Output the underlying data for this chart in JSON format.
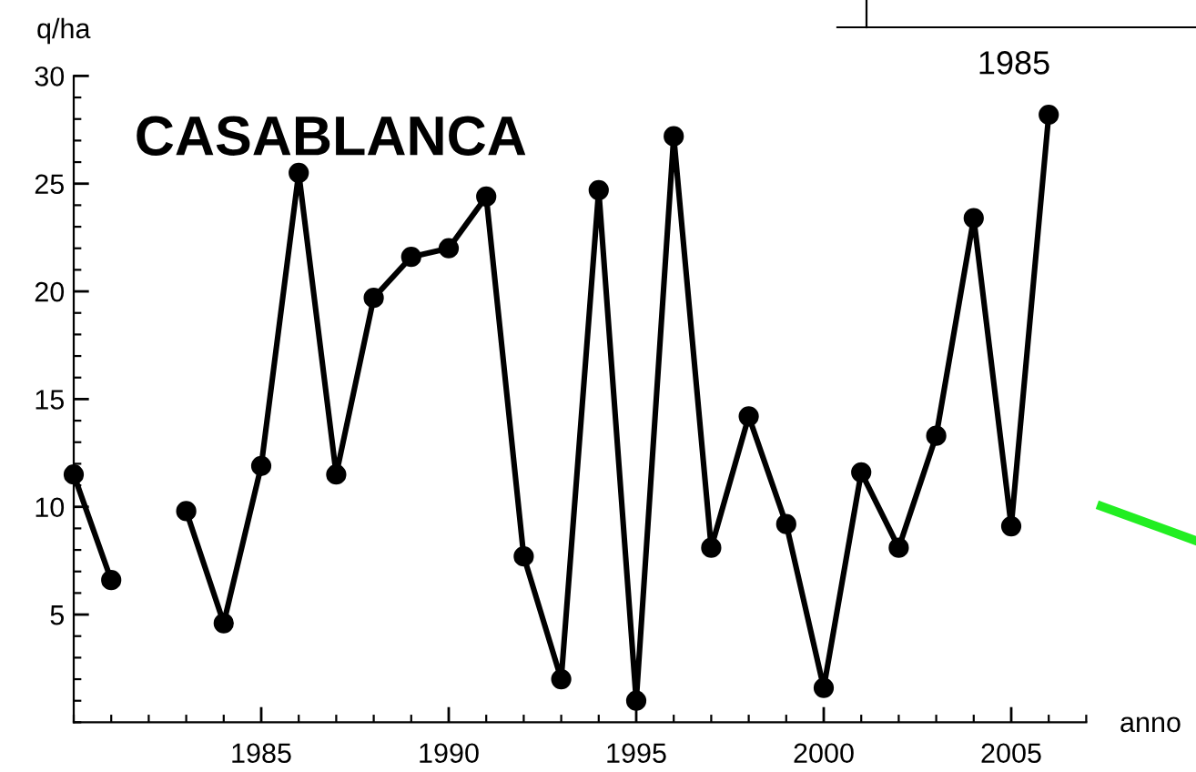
{
  "chart_data": {
    "type": "line",
    "title": "CASABLANCA",
    "xlabel": "anno",
    "ylabel": "q/ha",
    "x": [
      1980,
      1981,
      1982,
      1983,
      1984,
      1985,
      1986,
      1987,
      1988,
      1989,
      1990,
      1991,
      1992,
      1993,
      1994,
      1995,
      1996,
      1997,
      1998,
      1999,
      2000,
      2001,
      2002,
      2003,
      2004,
      2005,
      2006
    ],
    "series": [
      {
        "color": "#000000",
        "values": [
          11.5,
          6.6,
          null,
          9.8,
          4.6,
          11.9,
          25.5,
          11.5,
          19.7,
          21.6,
          22.0,
          24.4,
          7.7,
          2.0,
          24.7,
          1.0,
          27.2,
          8.1,
          14.2,
          9.2,
          1.6,
          11.6,
          8.1,
          13.3,
          23.4,
          9.1,
          28.2
        ]
      }
    ],
    "xlim": [
      1980,
      2007
    ],
    "ylim": [
      0,
      30
    ],
    "xticks": [
      1985,
      1990,
      1995,
      2000,
      2005
    ],
    "yticks": [
      5,
      10,
      15,
      20,
      25,
      30
    ],
    "marker": "circle",
    "line_style": "solid",
    "grid": false,
    "legend": false,
    "annotations": [
      "1985"
    ]
  }
}
